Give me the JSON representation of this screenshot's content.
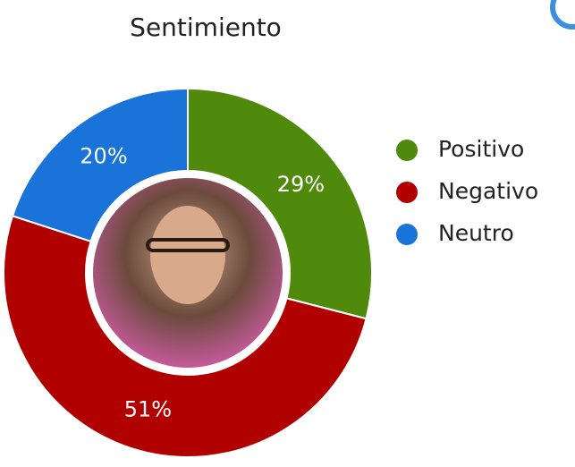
{
  "chart_data": {
    "type": "pie",
    "title": "Sentimiento",
    "categories": [
      "Positivo",
      "Negativo",
      "Neutro"
    ],
    "values": [
      29,
      51,
      20
    ],
    "value_labels": [
      "29%",
      "51%",
      "20%"
    ],
    "colors": [
      "#4f8a0c",
      "#b00000",
      "#1a73d9"
    ]
  }
}
